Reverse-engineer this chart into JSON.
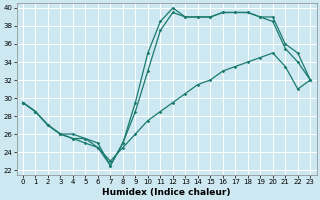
{
  "xlabel": "Humidex (Indice chaleur)",
  "background_color": "#cde8f0",
  "grid_color": "#ffffff",
  "line_color": "#1a7a6e",
  "xlim": [
    -0.5,
    23.5
  ],
  "ylim": [
    21.5,
    40.5
  ],
  "yticks": [
    22,
    24,
    26,
    28,
    30,
    32,
    34,
    36,
    38,
    40
  ],
  "xticks": [
    0,
    1,
    2,
    3,
    4,
    5,
    6,
    7,
    8,
    9,
    10,
    11,
    12,
    13,
    14,
    15,
    16,
    17,
    18,
    19,
    20,
    21,
    22,
    23
  ],
  "y_low": [
    29.5,
    28.5,
    27.0,
    26.0,
    25.5,
    25.5,
    24.5,
    23.0,
    24.5,
    26.0,
    27.5,
    28.5,
    29.5,
    30.5,
    31.5,
    32.0,
    33.0,
    33.5,
    34.0,
    34.5,
    35.0,
    33.5,
    31.0,
    32.0
  ],
  "y_high": [
    29.5,
    28.5,
    27.0,
    26.0,
    26.0,
    25.5,
    25.0,
    22.5,
    25.0,
    29.5,
    35.0,
    38.5,
    40.0,
    39.0,
    39.0,
    39.0,
    39.5,
    39.5,
    39.5,
    39.0,
    39.0,
    36.0,
    35.0,
    32.0
  ],
  "y_mid": [
    29.5,
    28.5,
    27.0,
    26.0,
    25.5,
    25.0,
    24.5,
    22.5,
    25.0,
    28.5,
    33.0,
    37.5,
    39.5,
    39.0,
    39.0,
    39.0,
    39.5,
    39.5,
    39.5,
    39.0,
    38.5,
    35.5,
    34.0,
    32.0
  ],
  "xlabel_fontsize": 6.5,
  "tick_fontsize": 5.0
}
